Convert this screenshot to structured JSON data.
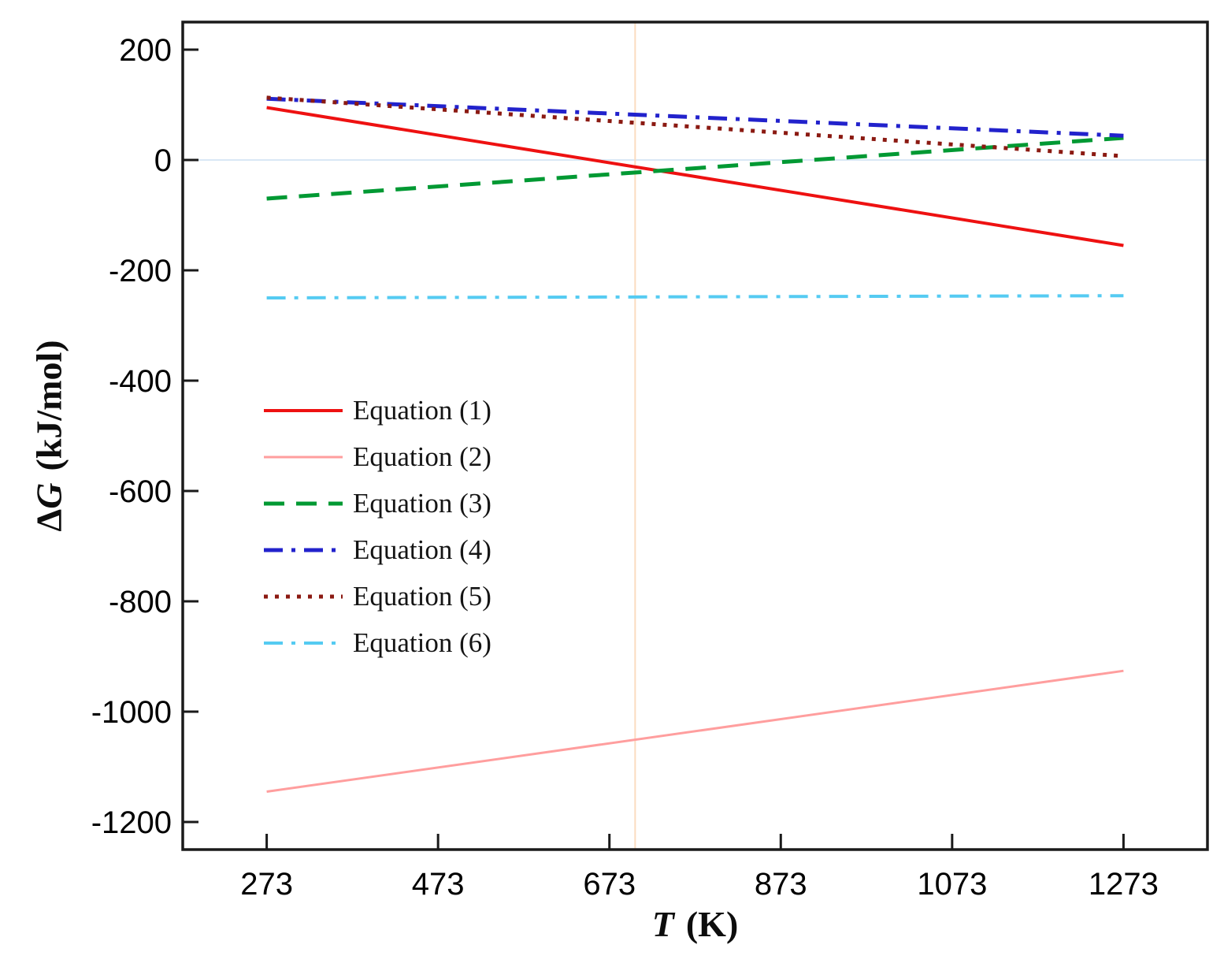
{
  "figure": {
    "background": "#ffffff",
    "axis_color": "#1a1a1a"
  },
  "chart_data": {
    "type": "line",
    "title": "",
    "xlabel": "T (K)",
    "ylabel": "ΔG (kJ/mol)",
    "xlabel_parts": {
      "symbol": "T",
      "unit": "(K)"
    },
    "ylabel_parts": {
      "delta": "Δ",
      "symbol": "G",
      "unit": "(kJ/mol)"
    },
    "xlim": [
      175,
      1371
    ],
    "ylim": [
      -1250,
      250
    ],
    "xticks": [
      273,
      473,
      673,
      873,
      1073,
      1273
    ],
    "yticks": [
      200,
      0,
      -200,
      -400,
      -600,
      -800,
      -1000,
      -1200
    ],
    "grid": false,
    "legend_position": "center-left",
    "x": [
      273,
      1273
    ],
    "series": [
      {
        "name": "Equation (1)",
        "color": "#ee1111",
        "style": "solid",
        "width": 4,
        "values": [
          95,
          -155
        ]
      },
      {
        "name": "Equation (2)",
        "color": "#ff9e9e",
        "style": "solid",
        "width": 3,
        "values": [
          -1145,
          -926
        ]
      },
      {
        "name": "Equation (3)",
        "color": "#009933",
        "style": "dashed",
        "width": 5,
        "values": [
          -70,
          40
        ]
      },
      {
        "name": "Equation (4)",
        "color": "#2222cc",
        "style": "dashdot",
        "width": 5,
        "values": [
          111,
          44
        ]
      },
      {
        "name": "Equation (5)",
        "color": "#8b1a12",
        "style": "dotted",
        "width": 5,
        "values": [
          113,
          7
        ]
      },
      {
        "name": "Equation (6)",
        "color": "#55cbf2",
        "style": "dashdot",
        "width": 4,
        "values": [
          -250,
          -246
        ]
      }
    ],
    "reference_lines": [
      {
        "orientation": "horizontal",
        "value": 0,
        "color": "#d9e8f5"
      },
      {
        "orientation": "vertical",
        "value": 703,
        "color": "#fbdcc0"
      }
    ]
  }
}
